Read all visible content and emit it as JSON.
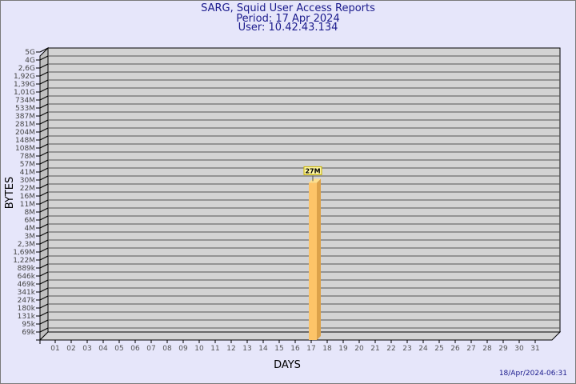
{
  "header": {
    "title": "SARG, Squid User Access Reports",
    "period": "Period: 17 Apr 2024",
    "user": "User: 10.42.43.134"
  },
  "footer": {
    "timestamp": "18/Apr/2024-06:31"
  },
  "chart_data": {
    "type": "bar",
    "style": "3d",
    "xlabel": "DAYS",
    "ylabel": "BYTES",
    "yscale": "log",
    "grid": true,
    "ytick_labels": [
      "5G",
      "4G",
      "2,6G",
      "1,92G",
      "1,39G",
      "1,01G",
      "734M",
      "533M",
      "387M",
      "281M",
      "204M",
      "148M",
      "108M",
      "78M",
      "57M",
      "41M",
      "30M",
      "22M",
      "16M",
      "11M",
      "8M",
      "6M",
      "4M",
      "3M",
      "2,3M",
      "1,69M",
      "1,22M",
      "889k",
      "646k",
      "469k",
      "341k",
      "247k",
      "180k",
      "131k",
      "95k",
      "69k"
    ],
    "categories": [
      "01",
      "02",
      "03",
      "04",
      "05",
      "06",
      "07",
      "08",
      "09",
      "10",
      "11",
      "12",
      "13",
      "14",
      "15",
      "16",
      "17",
      "18",
      "19",
      "20",
      "21",
      "22",
      "23",
      "24",
      "25",
      "26",
      "27",
      "28",
      "29",
      "30",
      "31"
    ],
    "bars": [
      {
        "day": "17",
        "value": 27000000,
        "label": "27M"
      }
    ],
    "colors": {
      "background": "#e6e6fa",
      "plot": "#d3d3d3",
      "wall": "#c0c0c0",
      "grid": "#555555",
      "bar_front": "#fdc468",
      "bar_side": "#dca24a",
      "bar_top": "#fde08e",
      "label_box": "#fdf5a0",
      "label_border": "#c8b400",
      "title": "#1a1a8c"
    }
  }
}
